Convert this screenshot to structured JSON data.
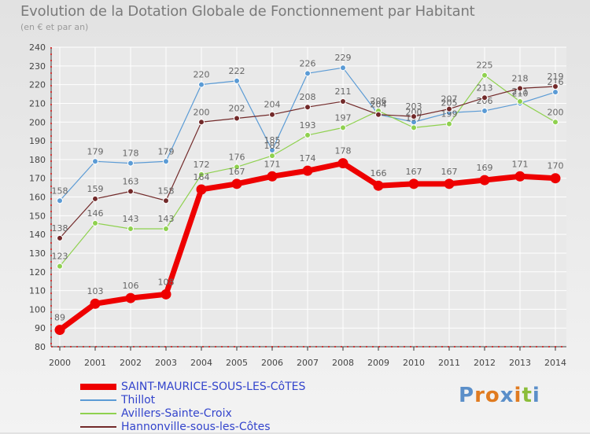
{
  "header": {
    "title": "Evolution de la Dotation Globale de Fonctionnement par Habitant",
    "subtitle": "(en € et par an)"
  },
  "brand": {
    "letters": [
      "P",
      "r",
      "o",
      "x",
      "i",
      "t",
      "i"
    ]
  },
  "colors": {
    "axis": "#cc0000",
    "grid": "#ffffff",
    "brand": [
      "#5b8fc9",
      "#e07b20",
      "#e07b20",
      "#5b8fc9",
      "#e07b20",
      "#8bbd3a",
      "#5b8fc9"
    ]
  },
  "chart_data": {
    "type": "line",
    "title": "Evolution de la Dotation Globale de Fonctionnement par Habitant",
    "ylabel": "(en € et par an)",
    "xlabel": "",
    "x": [
      "2000",
      "2001",
      "2002",
      "2003",
      "2004",
      "2005",
      "2006",
      "2007",
      "2008",
      "2009",
      "2010",
      "2011",
      "2012",
      "2013",
      "2014"
    ],
    "ylim": [
      80,
      240
    ],
    "yticks": [
      80,
      90,
      100,
      110,
      120,
      130,
      140,
      150,
      160,
      170,
      180,
      190,
      200,
      210,
      220,
      230,
      240
    ],
    "grid": true,
    "legend_position": "bottom-left",
    "series": [
      {
        "name": "SAINT-MAURICE-SOUS-LES-CôTES",
        "color": "#ee0000",
        "values": [
          89,
          103,
          106,
          108,
          164,
          167,
          171,
          174,
          178,
          166,
          167,
          167,
          169,
          171,
          170
        ],
        "labels": [
          "89",
          "103",
          "106",
          "108",
          "164",
          "167",
          "171",
          "174",
          "178",
          "166",
          "167",
          "167",
          "169",
          "171",
          "170"
        ]
      },
      {
        "name": "Thillot",
        "color": "#5b9bd5",
        "values": [
          158,
          179,
          178,
          179,
          220,
          222,
          185,
          226,
          229,
          204,
          200,
          205,
          206,
          210,
          216
        ],
        "labels": [
          "158",
          "179",
          "178",
          "179",
          "220",
          "222",
          "185",
          "226",
          "229",
          "204",
          "200",
          "205",
          "206",
          "210",
          "216"
        ]
      },
      {
        "name": "Avillers-Sainte-Croix",
        "color": "#8fd14f",
        "values": [
          123,
          146,
          143,
          143,
          172,
          176,
          182,
          193,
          197,
          206,
          197,
          199,
          225,
          211,
          200
        ],
        "labels": [
          "123",
          "146",
          "143",
          "143",
          "172",
          "176",
          "182",
          "193",
          "197",
          "206",
          "197",
          "199",
          "225",
          "211",
          "200"
        ]
      },
      {
        "name": "Hannonville-sous-les-Côtes",
        "color": "#722a2a",
        "values": [
          138,
          159,
          163,
          158,
          200,
          202,
          204,
          208,
          211,
          204,
          203,
          207,
          213,
          218,
          219
        ],
        "labels": [
          "138",
          "159",
          "163",
          "158",
          "200",
          "202",
          "204",
          "208",
          "211",
          "204",
          "203",
          "207",
          "213",
          "218",
          "219"
        ]
      }
    ]
  }
}
